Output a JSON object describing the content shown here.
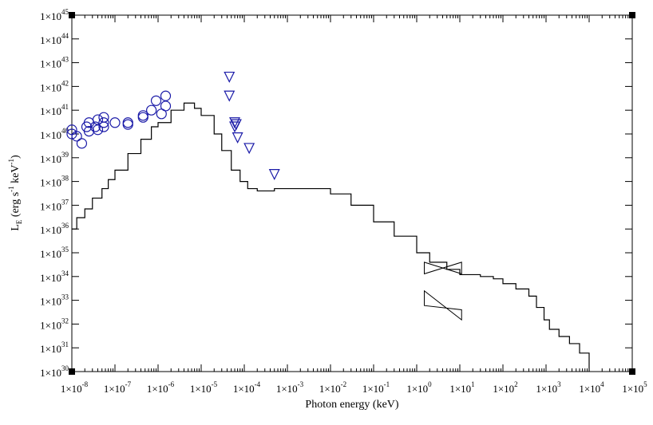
{
  "chart_data": {
    "type": "scatter",
    "xlabel": "Photon energy (keV)",
    "ylabel": {
      "main": "L",
      "sub": "E",
      "units_open": " (erg s",
      "units_exp1": "-1",
      "units_mid": " keV",
      "units_exp2": "-1",
      "units_close": ")"
    },
    "xscale": "log",
    "yscale": "log",
    "xlim": [
      1e-08,
      100000.0
    ],
    "ylim": [
      1e+30,
      1e+45
    ],
    "grid": false,
    "x_ticks": [
      {
        "mant": "1×10",
        "exp": "-8"
      },
      {
        "mant": "1×10",
        "exp": "-7"
      },
      {
        "mant": "1×10",
        "exp": "-6"
      },
      {
        "mant": "1×10",
        "exp": "-5"
      },
      {
        "mant": "1×10",
        "exp": "-4"
      },
      {
        "mant": "1×10",
        "exp": "-3"
      },
      {
        "mant": "1×10",
        "exp": "-2"
      },
      {
        "mant": "1×10",
        "exp": "-1"
      },
      {
        "mant": "1×10",
        "exp": "0"
      },
      {
        "mant": "1×10",
        "exp": "1"
      },
      {
        "mant": "1×10",
        "exp": "2"
      },
      {
        "mant": "1×10",
        "exp": "3"
      },
      {
        "mant": "1×10",
        "exp": "4"
      },
      {
        "mant": "1×10",
        "exp": "5"
      }
    ],
    "y_ticks": [
      {
        "mant": "1×10",
        "exp": "30"
      },
      {
        "mant": "1×10",
        "exp": "31"
      },
      {
        "mant": "1×10",
        "exp": "32"
      },
      {
        "mant": "1×10",
        "exp": "33"
      },
      {
        "mant": "1×10",
        "exp": "34"
      },
      {
        "mant": "1×10",
        "exp": "35"
      },
      {
        "mant": "1×10",
        "exp": "36"
      },
      {
        "mant": "1×10",
        "exp": "37"
      },
      {
        "mant": "1×10",
        "exp": "38"
      },
      {
        "mant": "1×10",
        "exp": "39"
      },
      {
        "mant": "1×10",
        "exp": "40"
      },
      {
        "mant": "1×10",
        "exp": "41"
      },
      {
        "mant": "1×10",
        "exp": "42"
      },
      {
        "mant": "1×10",
        "exp": "43"
      },
      {
        "mant": "1×10",
        "exp": "44"
      },
      {
        "mant": "1×10",
        "exp": "45"
      }
    ],
    "colors": {
      "model": "#000000",
      "detections": "#1a1aa8",
      "upper_limits": "#1a1aa8"
    },
    "series": [
      {
        "style": "step-line",
        "color": "#000000",
        "points": [
          [
            1e-08,
            1e+36
          ],
          [
            1.3e-08,
            3e+36
          ],
          [
            2e-08,
            7e+36
          ],
          [
            3e-08,
            2e+37
          ],
          [
            5e-08,
            5e+37
          ],
          [
            7e-08,
            1.2e+38
          ],
          [
            1e-07,
            3e+38
          ],
          [
            2e-07,
            1.5e+39
          ],
          [
            4e-07,
            6e+39
          ],
          [
            7e-07,
            2e+40
          ],
          [
            1e-06,
            3e+40
          ],
          [
            2e-06,
            1e+41
          ],
          [
            4e-06,
            2e+41
          ],
          [
            5e-06,
            2e+41
          ],
          [
            7e-06,
            1.2e+41
          ],
          [
            1e-05,
            6e+40
          ],
          [
            2e-05,
            1e+40
          ],
          [
            3e-05,
            2e+39
          ],
          [
            5e-05,
            3e+38
          ],
          [
            8e-05,
            1e+38
          ],
          [
            0.00012,
            5e+37
          ],
          [
            0.0002,
            4e+37
          ],
          [
            0.0005,
            5e+37
          ],
          [
            0.001,
            5e+37
          ],
          [
            0.003,
            5e+37
          ],
          [
            0.01,
            3e+37
          ],
          [
            0.03,
            1e+37
          ],
          [
            0.1,
            2e+36
          ],
          [
            0.3,
            5e+35
          ],
          [
            1,
            1e+35
          ],
          [
            2,
            4e+34
          ],
          [
            5,
            2e+34
          ],
          [
            10,
            1.2e+34
          ],
          [
            30,
            1e+34
          ],
          [
            60,
            8e+33
          ],
          [
            100,
            5e+33
          ],
          [
            200,
            3e+33
          ],
          [
            400,
            1.5e+33
          ],
          [
            600,
            5e+32
          ],
          [
            900,
            1.5e+32
          ],
          [
            1200,
            6e+31
          ],
          [
            2000,
            3e+31
          ],
          [
            3500,
            1.5e+31
          ],
          [
            6000,
            6e+30
          ],
          [
            10000.0,
            1e+30
          ]
        ]
      },
      {
        "style": "circle",
        "color": "#1a1aa8",
        "points": [
          [
            1e-08,
            1.5e+40
          ],
          [
            1e-08,
            1e+40
          ],
          [
            1.3e-08,
            8e+39
          ],
          [
            1.7e-08,
            4e+39
          ],
          [
            2.2e-08,
            2e+40
          ],
          [
            2.5e-08,
            3e+40
          ],
          [
            2.5e-08,
            1.3e+40
          ],
          [
            3.5e-08,
            2e+40
          ],
          [
            4e-08,
            4e+40
          ],
          [
            4e-08,
            1.5e+40
          ],
          [
            5.5e-08,
            5e+40
          ],
          [
            5.5e-08,
            2e+40
          ],
          [
            5.5e-08,
            3e+40
          ],
          [
            1e-07,
            3e+40
          ],
          [
            2e-07,
            3e+40
          ],
          [
            2e-07,
            2.5e+40
          ],
          [
            4.5e-07,
            6e+40
          ],
          [
            4.5e-07,
            5e+40
          ],
          [
            7e-07,
            1e+41
          ],
          [
            9e-07,
            2.5e+41
          ],
          [
            1.2e-06,
            7e+40
          ],
          [
            1.5e-06,
            1.5e+41
          ],
          [
            1.5e-06,
            4e+41
          ]
        ]
      },
      {
        "style": "triangle-down",
        "color": "#1a1aa8",
        "points": [
          [
            4.5e-05,
            2.5e+42
          ],
          [
            4.5e-05,
            4e+41
          ],
          [
            6e-05,
            3e+40
          ],
          [
            6.5e-05,
            2.5e+40
          ],
          [
            6e-05,
            2e+40
          ],
          [
            7e-05,
            7e+39
          ],
          [
            0.00013,
            2.5e+39
          ],
          [
            0.0005,
            2e+38
          ]
        ]
      },
      {
        "style": "bowtie",
        "color": "#000000",
        "boxes": [
          {
            "x": [
              1.5,
              11
            ],
            "left": [
              1.3e+34,
              4e+34
            ],
            "right": [
              1.3e+34,
              4e+34
            ],
            "pivot": [
              4,
              2.3e+34
            ]
          },
          {
            "x": [
              1.5,
              11
            ],
            "left": [
              6e+32,
              2.5e+33
            ],
            "right": [
              1.5e+32,
              4e+32
            ],
            "pivot": [
              4,
              6e+32
            ]
          }
        ]
      }
    ]
  }
}
